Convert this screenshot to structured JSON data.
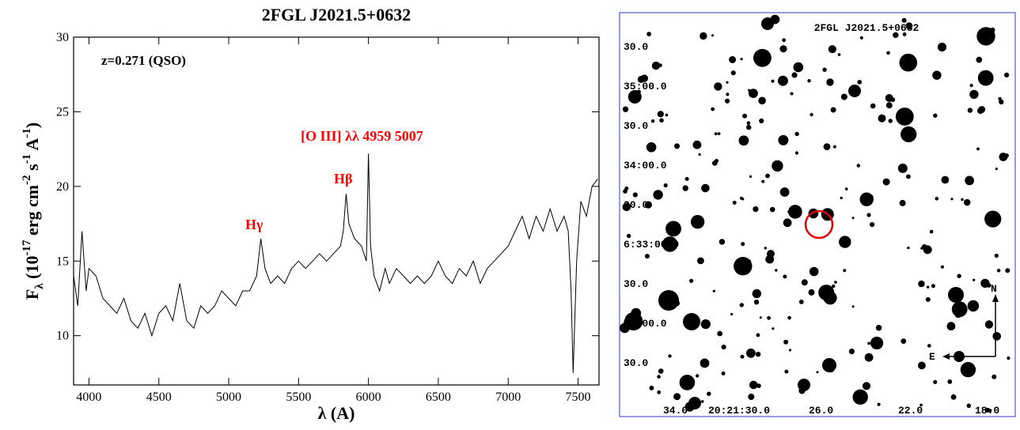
{
  "chart_data": {
    "type": "line",
    "title": "2FGL J2021.5+0632",
    "xlabel": [
      "λ (A)"
    ],
    "ylabel": [
      "F",
      "λ",
      " (10",
      "-17",
      " erg cm",
      "-2",
      " s",
      "-1",
      " A",
      "-1",
      ")"
    ],
    "annotations": [
      "z=0.271 (QSO)",
      "Hγ",
      "Hβ",
      "[O III] λλ 4959 5007"
    ],
    "color": "#000000",
    "x": [
      3890,
      3920,
      3950,
      3980,
      4000,
      4050,
      4100,
      4150,
      4200,
      4250,
      4300,
      4350,
      4400,
      4450,
      4500,
      4550,
      4600,
      4650,
      4700,
      4750,
      4800,
      4850,
      4900,
      4950,
      5000,
      5050,
      5100,
      5150,
      5200,
      5230,
      5260,
      5300,
      5350,
      5400,
      5450,
      5500,
      5550,
      5600,
      5650,
      5700,
      5750,
      5800,
      5820,
      5840,
      5860,
      5900,
      5950,
      5985,
      6000,
      6015,
      6040,
      6080,
      6120,
      6150,
      6200,
      6250,
      6300,
      6350,
      6400,
      6450,
      6500,
      6550,
      6600,
      6650,
      6700,
      6750,
      6800,
      6850,
      6900,
      6950,
      7000,
      7050,
      7100,
      7150,
      7200,
      7250,
      7300,
      7350,
      7400,
      7430,
      7450,
      7465,
      7490,
      7520,
      7560,
      7600,
      7640
    ],
    "values": [
      14,
      12,
      17,
      13,
      14.5,
      14,
      12.5,
      12,
      11.5,
      12.5,
      11,
      10.5,
      11.5,
      10,
      11.5,
      12,
      11,
      13.5,
      11,
      10.5,
      12,
      11.5,
      12,
      13,
      12.5,
      12,
      13,
      13,
      14,
      16.5,
      14.5,
      13.5,
      14,
      13.5,
      14.5,
      15,
      14.5,
      15,
      15.5,
      15,
      15.5,
      16,
      17,
      19.5,
      17.5,
      16.5,
      16,
      15,
      22.2,
      16,
      14,
      13,
      14.5,
      13.5,
      14.5,
      14,
      13.5,
      14,
      13.5,
      14,
      15,
      14,
      13.5,
      14.5,
      14,
      15,
      13.5,
      14.5,
      15,
      15.5,
      16,
      17,
      18,
      16.5,
      18,
      17,
      18.5,
      17,
      18,
      17,
      13,
      7.5,
      15,
      19,
      18,
      20,
      20.5
    ],
    "xlim": [
      3890,
      7650
    ],
    "xticks": [
      4000,
      4500,
      5000,
      5500,
      6000,
      6500,
      7000,
      7500
    ],
    "ylim": [
      6.7,
      30
    ],
    "yticks": [
      10,
      15,
      20,
      25,
      30
    ]
  },
  "finding_chart": {
    "title": "2FGL J2021.5+0632",
    "dec_labels": [
      "30.0",
      "35:00.0",
      "30.0",
      "34:00.0",
      "30.0",
      "6:33:00.0",
      "30.0",
      "32:00.0",
      "30.0"
    ],
    "ra_labels": [
      "34.0",
      "20:21:30.0",
      "26.0",
      "22.0",
      "18.0"
    ],
    "north": "N",
    "east": "E"
  }
}
